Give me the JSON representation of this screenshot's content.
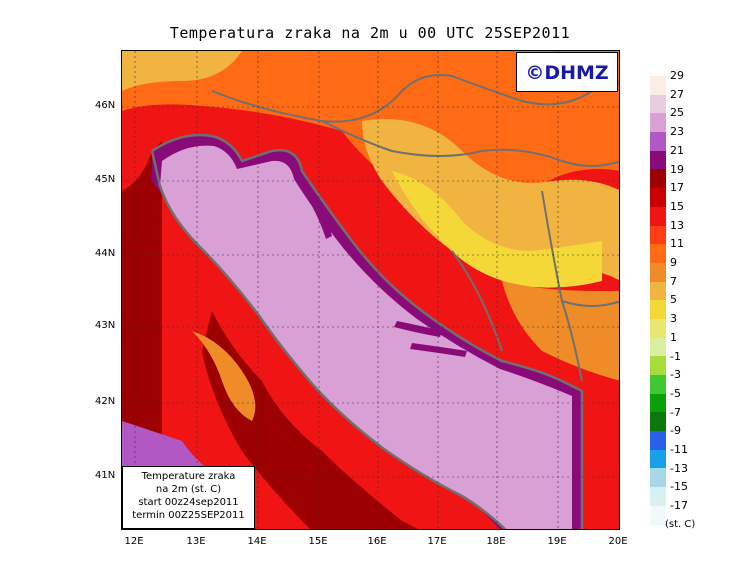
{
  "title": "Temperatura zraka na 2m u 00 UTC 25SEP2011",
  "logo": "©DHMZ",
  "infobox": {
    "line1": "Temperature zraka",
    "line2": "na 2m (st. C)",
    "line3": "start 00z24sep2011",
    "line4": "termin 00Z25SEP2011"
  },
  "lat_ticks": [
    "46N",
    "45N",
    "44N",
    "43N",
    "42N",
    "41N"
  ],
  "lon_ticks": [
    "12E",
    "13E",
    "14E",
    "15E",
    "16E",
    "17E",
    "18E",
    "19E",
    "20E"
  ],
  "legend": {
    "unit": "(st. C)",
    "labels": [
      "29",
      "27",
      "25",
      "23",
      "21",
      "19",
      "17",
      "15",
      "13",
      "11",
      "9",
      "7",
      "5",
      "3",
      "1",
      "-1",
      "-3",
      "-5",
      "-7",
      "-9",
      "-11",
      "-13",
      "-15",
      "-17"
    ],
    "colors": [
      "#fbeee4",
      "#e8cde0",
      "#d9a0d6",
      "#b258c4",
      "#8a0a7a",
      "#9c0000",
      "#c80000",
      "#f01414",
      "#ff3c14",
      "#ff6a14",
      "#f08c28",
      "#f2b440",
      "#f4d838",
      "#e8e870",
      "#d8f0a0",
      "#a8dc3c",
      "#40c830",
      "#0aa00a",
      "#0a780a",
      "#2860e8",
      "#18a0e8",
      "#a8d8e8",
      "#d8f0f0",
      "#f0fafa"
    ]
  },
  "colors": {
    "sea": "#d9a0d6",
    "coast": "#8a0a7a",
    "border": "#707070"
  }
}
